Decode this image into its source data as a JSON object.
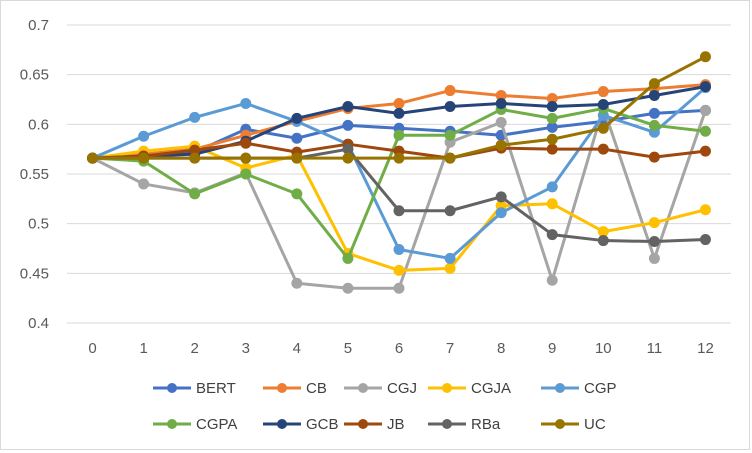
{
  "chart_data": {
    "type": "line",
    "title": "",
    "xlabel": "",
    "ylabel": "",
    "x": [
      0,
      1,
      2,
      3,
      4,
      5,
      6,
      7,
      8,
      9,
      10,
      11,
      12
    ],
    "x_tick_labels": [
      "0",
      "1",
      "2",
      "3",
      "4",
      "5",
      "6",
      "7",
      "8",
      "9",
      "10",
      "11",
      "12"
    ],
    "ylim": [
      0.4,
      0.7
    ],
    "y_ticks": [
      0.4,
      0.45,
      0.5,
      0.55,
      0.6,
      0.65,
      0.7
    ],
    "y_tick_labels": [
      "0.4",
      "0.45",
      "0.5",
      "0.55",
      "0.6",
      "0.65",
      "0.7"
    ],
    "grid": "horizontal",
    "legend_position": "bottom",
    "series": [
      {
        "name": "BERT",
        "color": "#4472C4",
        "values": [
          0.566,
          0.567,
          0.572,
          0.595,
          0.586,
          0.599,
          0.596,
          0.593,
          0.589,
          0.597,
          0.603,
          0.611,
          0.614
        ]
      },
      {
        "name": "CB",
        "color": "#ED7D31",
        "values": [
          0.566,
          0.57,
          0.575,
          0.589,
          0.603,
          0.616,
          0.621,
          0.634,
          0.629,
          0.626,
          0.633,
          0.636,
          0.64
        ]
      },
      {
        "name": "CGJ",
        "color": "#A5A5A5",
        "values": [
          0.566,
          0.54,
          0.531,
          0.551,
          0.44,
          0.435,
          0.435,
          0.582,
          0.602,
          0.443,
          0.617,
          0.465,
          0.614
        ]
      },
      {
        "name": "CGJA",
        "color": "#FFC000",
        "values": [
          0.566,
          0.573,
          0.578,
          0.556,
          0.569,
          0.47,
          0.453,
          0.455,
          0.518,
          0.52,
          0.492,
          0.501,
          0.514
        ]
      },
      {
        "name": "CGP",
        "color": "#5B9BD5",
        "values": [
          0.566,
          0.588,
          0.607,
          0.621,
          0.603,
          0.58,
          0.474,
          0.465,
          0.511,
          0.537,
          0.609,
          0.592,
          0.637
        ]
      },
      {
        "name": "CGPA",
        "color": "#70AD47",
        "values": [
          0.566,
          0.563,
          0.53,
          0.55,
          0.53,
          0.465,
          0.589,
          0.589,
          0.615,
          0.606,
          0.616,
          0.599,
          0.593
        ]
      },
      {
        "name": "GCB",
        "color": "#264478",
        "values": [
          0.566,
          0.568,
          0.57,
          0.583,
          0.606,
          0.618,
          0.611,
          0.618,
          0.621,
          0.618,
          0.62,
          0.629,
          0.638
        ]
      },
      {
        "name": "JB",
        "color": "#9E480E",
        "values": [
          0.566,
          0.568,
          0.574,
          0.581,
          0.572,
          0.58,
          0.573,
          0.566,
          0.576,
          0.575,
          0.575,
          0.567,
          0.573
        ]
      },
      {
        "name": "RBa",
        "color": "#636363",
        "values": [
          0.566,
          0.566,
          0.566,
          0.566,
          0.566,
          0.575,
          0.513,
          0.513,
          0.527,
          0.489,
          0.483,
          0.482,
          0.484
        ]
      },
      {
        "name": "UC",
        "color": "#997300",
        "values": [
          0.566,
          0.566,
          0.566,
          0.566,
          0.566,
          0.566,
          0.566,
          0.566,
          0.579,
          0.585,
          0.596,
          0.641,
          0.668
        ]
      }
    ]
  }
}
